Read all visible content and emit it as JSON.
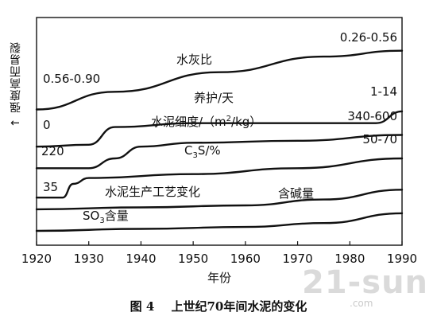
{
  "figure": {
    "y_axis_label": "强度高而易裂",
    "arrow_glyph": "↑",
    "caption_number": "图 4",
    "caption_text": "上世纪70年间水泥的变化",
    "watermark": "21-sun",
    "watermark_sub": ".com"
  },
  "chart_data": {
    "type": "line",
    "xlabel": "年份",
    "ylabel": "强度高而易裂",
    "xlim": [
      1920,
      1990
    ],
    "x_ticks": [
      "1920",
      "1930",
      "1940",
      "1950",
      "1960",
      "1970",
      "1980",
      "1990"
    ],
    "ylim": [
      0,
      100
    ],
    "y_ticks": false,
    "grid": false,
    "series": [
      {
        "name": "水灰比",
        "start_label": "0.56-0.90",
        "end_label": "0.26-0.56",
        "points": [
          [
            1920,
            62
          ],
          [
            1935,
            71
          ],
          [
            1955,
            81
          ],
          [
            1975,
            89
          ],
          [
            1990,
            92
          ]
        ]
      },
      {
        "name": "养护/天",
        "start_label": "0",
        "end_label": "1-14",
        "points": [
          [
            1920,
            43
          ],
          [
            1930,
            44
          ],
          [
            1935,
            53
          ],
          [
            1950,
            55
          ],
          [
            1970,
            55
          ],
          [
            1985,
            55
          ],
          [
            1990,
            61
          ]
        ]
      },
      {
        "name": "水泥细度/（m²/kg）",
        "name_parts": [
          "水泥细度/（m",
          "2",
          "/kg）"
        ],
        "start_label": "220",
        "end_label": "340-600",
        "points": [
          [
            1920,
            32
          ],
          [
            1930,
            32
          ],
          [
            1935,
            37
          ],
          [
            1940,
            43
          ],
          [
            1950,
            45
          ],
          [
            1970,
            46
          ],
          [
            1990,
            49
          ]
        ]
      },
      {
        "name": "C3S/%",
        "name_parts": [
          "C",
          "3",
          "S/%"
        ],
        "start_label": "35",
        "end_label": "50-70",
        "points": [
          [
            1920,
            17
          ],
          [
            1925,
            17
          ],
          [
            1927,
            24
          ],
          [
            1930,
            27
          ],
          [
            1950,
            29
          ],
          [
            1970,
            32
          ],
          [
            1990,
            37
          ]
        ]
      },
      {
        "name": "含碱量",
        "points": [
          [
            1920,
            11
          ],
          [
            1940,
            12
          ],
          [
            1960,
            13
          ],
          [
            1975,
            16
          ],
          [
            1990,
            21
          ]
        ]
      },
      {
        "name": "SO3含量",
        "name_parts": [
          "SO",
          "3",
          "含量"
        ],
        "points": [
          [
            1920,
            0
          ],
          [
            1940,
            1
          ],
          [
            1960,
            2
          ],
          [
            1975,
            4
          ],
          [
            1990,
            9
          ]
        ]
      }
    ],
    "annotations": [
      "水泥生产工艺变化"
    ]
  }
}
